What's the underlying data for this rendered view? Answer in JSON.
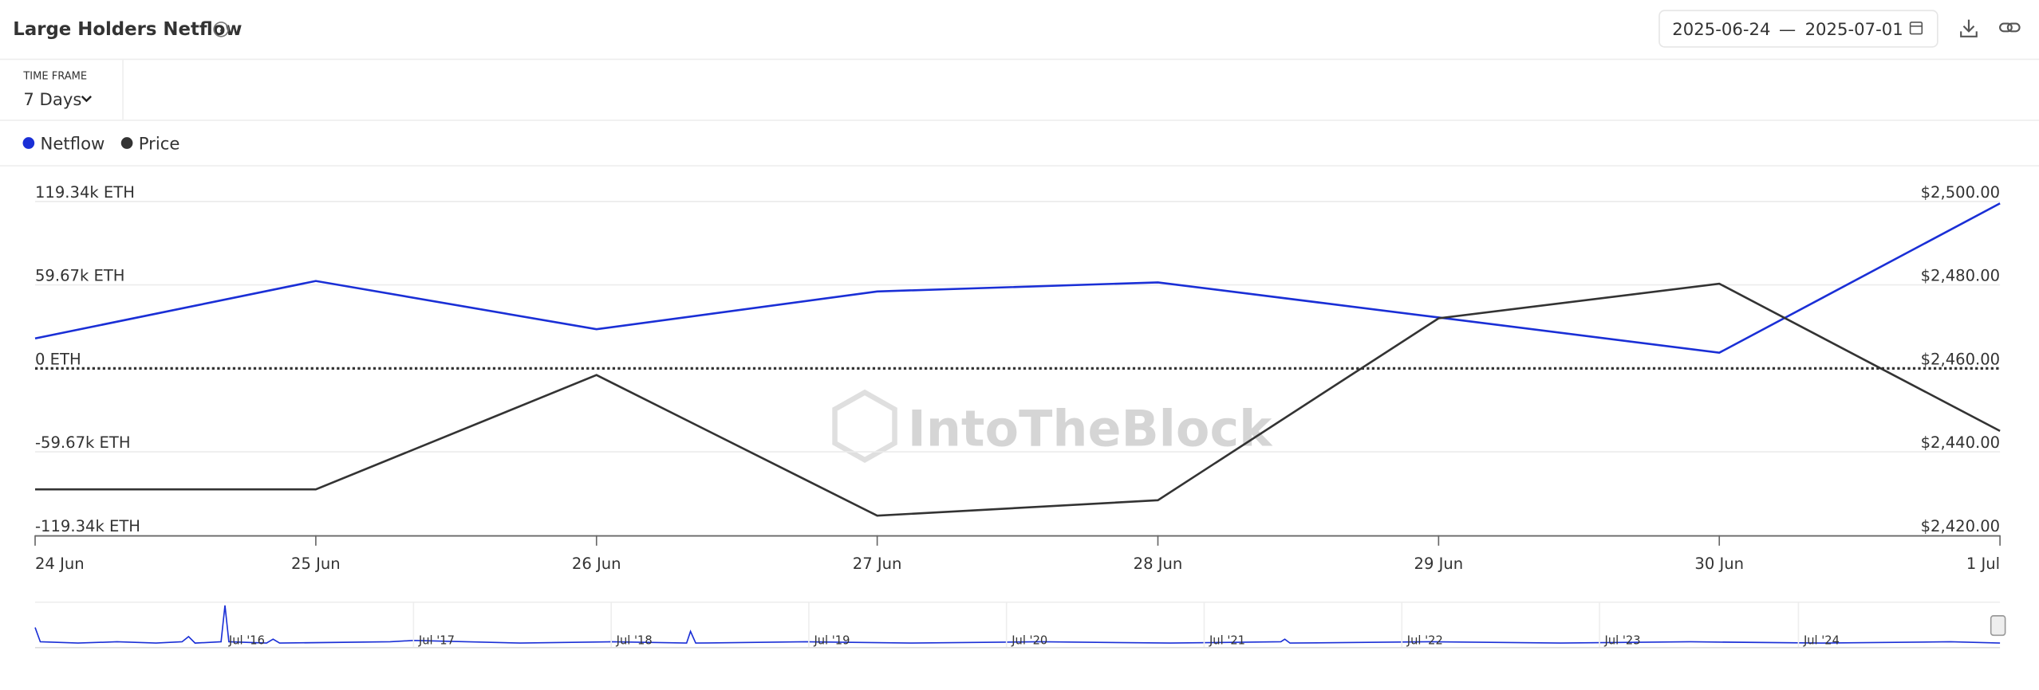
{
  "header": {
    "title": "Large Holders Netflow",
    "date_from": "2025-06-24",
    "date_separator": "—",
    "date_to": "2025-07-01"
  },
  "controls": {
    "time_frame_label": "TIME FRAME",
    "time_frame_value": "7 Days"
  },
  "watermark": "IntoTheBlock",
  "chart_data": {
    "type": "line",
    "categories": [
      "24 Jun",
      "25 Jun",
      "26 Jun",
      "27 Jun",
      "28 Jun",
      "29 Jun",
      "30 Jun",
      "1 Jul"
    ],
    "series": [
      {
        "name": "Netflow",
        "color": "#1a2fd6",
        "values": [
          21400,
          62500,
          28000,
          55000,
          61500,
          36400,
          11200,
          118000
        ]
      },
      {
        "name": "Price",
        "color": "#333333",
        "axis": "y2",
        "values": [
          2431,
          2431,
          2458.4,
          2424.7,
          2428.4,
          2472,
          2480.3,
          2445
        ]
      }
    ],
    "ylim": [
      -119340,
      119340
    ],
    "yticks": [
      {
        "value": -119340,
        "label": "-119.34k ETH"
      },
      {
        "value": -59670,
        "label": "-59.67k ETH"
      },
      {
        "value": 0,
        "label": "0 ETH"
      },
      {
        "value": 59670,
        "label": "59.67k ETH"
      },
      {
        "value": 119340,
        "label": "119.34k ETH"
      }
    ],
    "y2lim": [
      2420,
      2500
    ],
    "y2ticks": [
      {
        "value": 2420,
        "label": "$2,420.00"
      },
      {
        "value": 2440,
        "label": "$2,440.00"
      },
      {
        "value": 2460,
        "label": "$2,460.00"
      },
      {
        "value": 2480,
        "label": "$2,480.00"
      },
      {
        "value": 2500,
        "label": "$2,500.00"
      }
    ],
    "grid": true,
    "legend": "top-left"
  },
  "navigator": {
    "labels": [
      "Jul '16",
      "Jul '17",
      "Jul '18",
      "Jul '19",
      "Jul '20",
      "Jul '21",
      "Jul '22",
      "Jul '23",
      "Jul '24"
    ]
  }
}
